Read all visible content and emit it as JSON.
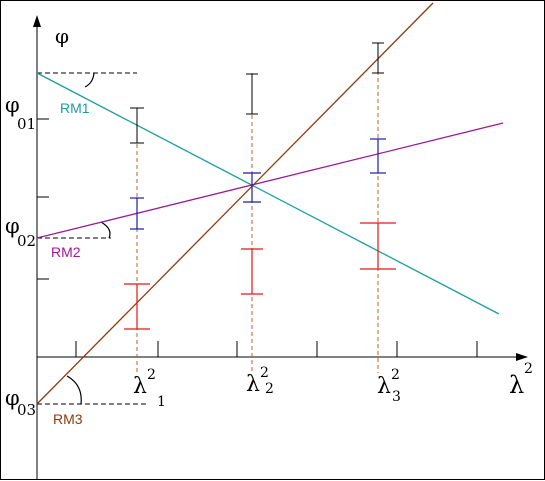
{
  "axes": {
    "y_symbol": "φ",
    "x_symbol": "λ",
    "x_exponent": "2"
  },
  "y_intercepts": [
    {
      "base": "φ",
      "sub": "01"
    },
    {
      "base": "φ",
      "sub": "02"
    },
    {
      "base": "φ",
      "sub": "03"
    }
  ],
  "x_marks": [
    {
      "base": "λ",
      "sup": "2",
      "sub": "1"
    },
    {
      "base": "λ",
      "sup": "2",
      "sub": "2"
    },
    {
      "base": "λ",
      "sup": "2",
      "sub": "3"
    }
  ],
  "lines": [
    {
      "label": "RM1",
      "color": "#1a9e9e"
    },
    {
      "label": "RM2",
      "color": "#9a1a9a"
    },
    {
      "label": "RM3",
      "color": "#8b3a0f"
    }
  ],
  "error_bar_colors": {
    "black": "#000000",
    "blue": "#1a1aa8",
    "red": "#e01818",
    "guide": "#c0622a"
  }
}
